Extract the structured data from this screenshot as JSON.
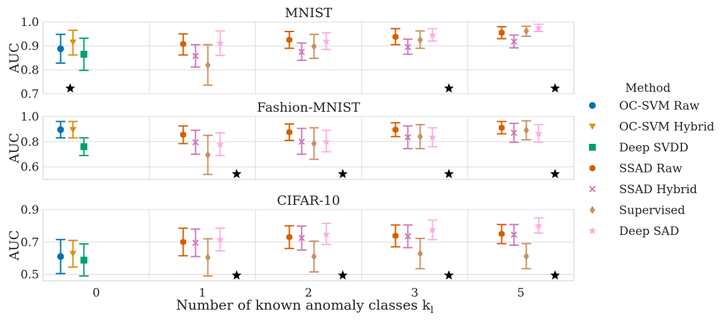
{
  "chart_data": {
    "type": "errorbar",
    "xlabel": "Number of known anomaly classes k",
    "xlabel_subscript": "l",
    "categories": [
      "0",
      "1",
      "2",
      "3",
      "5"
    ],
    "legend": {
      "title": "Method",
      "placement": "right",
      "entries": [
        {
          "name": "OC-SVM Raw",
          "color": "#0173b2",
          "marker": "circle"
        },
        {
          "name": "OC-SVM Hybrid",
          "color": "#de8f05",
          "marker": "triangle-down"
        },
        {
          "name": "Deep SVDD",
          "color": "#029e73",
          "marker": "square"
        },
        {
          "name": "SSAD Raw",
          "color": "#d55e00",
          "marker": "hexagon"
        },
        {
          "name": "SSAD Hybrid",
          "color": "#cc78bc",
          "marker": "x"
        },
        {
          "name": "Supervised",
          "color": "#ca9161",
          "marker": "diamond"
        },
        {
          "name": "Deep SAD",
          "color": "#fbafe4",
          "marker": "star"
        }
      ]
    },
    "panels": [
      {
        "title": "MNIST",
        "ylabel": "AUC",
        "ylim": [
          0.7,
          1.0
        ],
        "yticks": [
          "0.7",
          "0.8",
          "0.9",
          "1.0"
        ],
        "ytick_values": [
          0.7,
          0.8,
          0.9,
          1.0
        ],
        "series": [
          {
            "method": "OC-SVM Raw",
            "points": [
              {
                "k": "0",
                "mean": 0.888,
                "lo": 0.828,
                "hi": 0.948
              }
            ]
          },
          {
            "method": "OC-SVM Hybrid",
            "points": [
              {
                "k": "0",
                "mean": 0.915,
                "lo": 0.862,
                "hi": 0.965
              }
            ]
          },
          {
            "method": "Deep SVDD",
            "points": [
              {
                "k": "0",
                "mean": 0.865,
                "lo": 0.798,
                "hi": 0.932
              }
            ]
          },
          {
            "method": "SSAD Raw",
            "points": [
              {
                "k": "1",
                "mean": 0.908,
                "lo": 0.862,
                "hi": 0.95
              },
              {
                "k": "2",
                "mean": 0.925,
                "lo": 0.89,
                "hi": 0.96
              },
              {
                "k": "3",
                "mean": 0.938,
                "lo": 0.905,
                "hi": 0.972
              },
              {
                "k": "5",
                "mean": 0.955,
                "lo": 0.93,
                "hi": 0.98
              }
            ]
          },
          {
            "method": "SSAD Hybrid",
            "points": [
              {
                "k": "1",
                "mean": 0.858,
                "lo": 0.812,
                "hi": 0.905
              },
              {
                "k": "2",
                "mean": 0.875,
                "lo": 0.84,
                "hi": 0.912
              },
              {
                "k": "3",
                "mean": 0.895,
                "lo": 0.865,
                "hi": 0.928
              },
              {
                "k": "5",
                "mean": 0.918,
                "lo": 0.892,
                "hi": 0.945
              }
            ]
          },
          {
            "method": "Supervised",
            "points": [
              {
                "k": "1",
                "mean": 0.82,
                "lo": 0.736,
                "hi": 0.905
              },
              {
                "k": "2",
                "mean": 0.898,
                "lo": 0.848,
                "hi": 0.948
              },
              {
                "k": "3",
                "mean": 0.925,
                "lo": 0.89,
                "hi": 0.962
              },
              {
                "k": "5",
                "mean": 0.962,
                "lo": 0.94,
                "hi": 0.982
              }
            ]
          },
          {
            "method": "Deep SAD",
            "points": [
              {
                "k": "1",
                "mean": 0.912,
                "lo": 0.86,
                "hi": 0.962
              },
              {
                "k": "2",
                "mean": 0.92,
                "lo": 0.885,
                "hi": 0.955
              },
              {
                "k": "3",
                "mean": 0.945,
                "lo": 0.92,
                "hi": 0.972
              },
              {
                "k": "5",
                "mean": 0.975,
                "lo": 0.96,
                "hi": 0.99
              }
            ]
          }
        ],
        "best_markers": [
          "0",
          "3",
          "5"
        ]
      },
      {
        "title": "Fashion-MNIST",
        "ylabel": "AUC",
        "ylim": [
          0.5,
          1.0
        ],
        "yticks": [
          "0.6",
          "0.8",
          "1.0"
        ],
        "ytick_values": [
          0.6,
          0.8,
          1.0
        ],
        "series": [
          {
            "method": "OC-SVM Raw",
            "points": [
              {
                "k": "0",
                "mean": 0.895,
                "lo": 0.83,
                "hi": 0.96
              }
            ]
          },
          {
            "method": "OC-SVM Hybrid",
            "points": [
              {
                "k": "0",
                "mean": 0.895,
                "lo": 0.83,
                "hi": 0.96
              }
            ]
          },
          {
            "method": "Deep SVDD",
            "points": [
              {
                "k": "0",
                "mean": 0.76,
                "lo": 0.69,
                "hi": 0.83
              }
            ]
          },
          {
            "method": "SSAD Raw",
            "points": [
              {
                "k": "1",
                "mean": 0.855,
                "lo": 0.785,
                "hi": 0.925
              },
              {
                "k": "2",
                "mean": 0.875,
                "lo": 0.81,
                "hi": 0.94
              },
              {
                "k": "3",
                "mean": 0.895,
                "lo": 0.84,
                "hi": 0.95
              },
              {
                "k": "5",
                "mean": 0.91,
                "lo": 0.862,
                "hi": 0.96
              }
            ]
          },
          {
            "method": "SSAD Hybrid",
            "points": [
              {
                "k": "1",
                "mean": 0.795,
                "lo": 0.7,
                "hi": 0.89
              },
              {
                "k": "2",
                "mean": 0.8,
                "lo": 0.7,
                "hi": 0.905
              },
              {
                "k": "3",
                "mean": 0.835,
                "lo": 0.745,
                "hi": 0.925
              },
              {
                "k": "5",
                "mean": 0.87,
                "lo": 0.795,
                "hi": 0.945
              }
            ]
          },
          {
            "method": "Supervised",
            "points": [
              {
                "k": "1",
                "mean": 0.695,
                "lo": 0.54,
                "hi": 0.85
              },
              {
                "k": "2",
                "mean": 0.785,
                "lo": 0.66,
                "hi": 0.91
              },
              {
                "k": "3",
                "mean": 0.84,
                "lo": 0.745,
                "hi": 0.935
              },
              {
                "k": "5",
                "mean": 0.89,
                "lo": 0.815,
                "hi": 0.965
              }
            ]
          },
          {
            "method": "Deep SAD",
            "points": [
              {
                "k": "1",
                "mean": 0.78,
                "lo": 0.69,
                "hi": 0.87
              },
              {
                "k": "2",
                "mean": 0.8,
                "lo": 0.72,
                "hi": 0.89
              },
              {
                "k": "3",
                "mean": 0.835,
                "lo": 0.76,
                "hi": 0.91
              },
              {
                "k": "5",
                "mean": 0.865,
                "lo": 0.795,
                "hi": 0.935
              }
            ]
          }
        ],
        "best_markers": [
          "1",
          "2",
          "3",
          "5"
        ]
      },
      {
        "title": "CIFAR-10",
        "ylabel": "AUC",
        "ylim": [
          0.46,
          0.9
        ],
        "yticks": [
          "0.5",
          "0.7",
          "0.9"
        ],
        "ytick_values": [
          0.5,
          0.7,
          0.9
        ],
        "series": [
          {
            "method": "OC-SVM Raw",
            "points": [
              {
                "k": "0",
                "mean": 0.61,
                "lo": 0.505,
                "hi": 0.715
              }
            ]
          },
          {
            "method": "OC-SVM Hybrid",
            "points": [
              {
                "k": "0",
                "mean": 0.628,
                "lo": 0.545,
                "hi": 0.71
              }
            ]
          },
          {
            "method": "Deep SVDD",
            "points": [
              {
                "k": "0",
                "mean": 0.588,
                "lo": 0.49,
                "hi": 0.688
              }
            ]
          },
          {
            "method": "SSAD Raw",
            "points": [
              {
                "k": "1",
                "mean": 0.7,
                "lo": 0.615,
                "hi": 0.785
              },
              {
                "k": "2",
                "mean": 0.73,
                "lo": 0.66,
                "hi": 0.8
              },
              {
                "k": "3",
                "mean": 0.738,
                "lo": 0.67,
                "hi": 0.805
              },
              {
                "k": "5",
                "mean": 0.75,
                "lo": 0.69,
                "hi": 0.808
              }
            ]
          },
          {
            "method": "SSAD Hybrid",
            "points": [
              {
                "k": "1",
                "mean": 0.695,
                "lo": 0.61,
                "hi": 0.78
              },
              {
                "k": "2",
                "mean": 0.725,
                "lo": 0.65,
                "hi": 0.798
              },
              {
                "k": "3",
                "mean": 0.735,
                "lo": 0.665,
                "hi": 0.805
              },
              {
                "k": "5",
                "mean": 0.745,
                "lo": 0.68,
                "hi": 0.808
              }
            ]
          },
          {
            "method": "Supervised",
            "points": [
              {
                "k": "1",
                "mean": 0.605,
                "lo": 0.49,
                "hi": 0.72
              },
              {
                "k": "2",
                "mean": 0.61,
                "lo": 0.515,
                "hi": 0.705
              },
              {
                "k": "3",
                "mean": 0.628,
                "lo": 0.535,
                "hi": 0.722
              },
              {
                "k": "5",
                "mean": 0.612,
                "lo": 0.535,
                "hi": 0.69
              }
            ]
          },
          {
            "method": "Deep SAD",
            "points": [
              {
                "k": "1",
                "mean": 0.715,
                "lo": 0.645,
                "hi": 0.785
              },
              {
                "k": "2",
                "mean": 0.748,
                "lo": 0.685,
                "hi": 0.815
              },
              {
                "k": "3",
                "mean": 0.775,
                "lo": 0.715,
                "hi": 0.835
              },
              {
                "k": "5",
                "mean": 0.8,
                "lo": 0.755,
                "hi": 0.848
              }
            ]
          }
        ],
        "best_markers": [
          "1",
          "2",
          "3",
          "5"
        ]
      }
    ]
  }
}
